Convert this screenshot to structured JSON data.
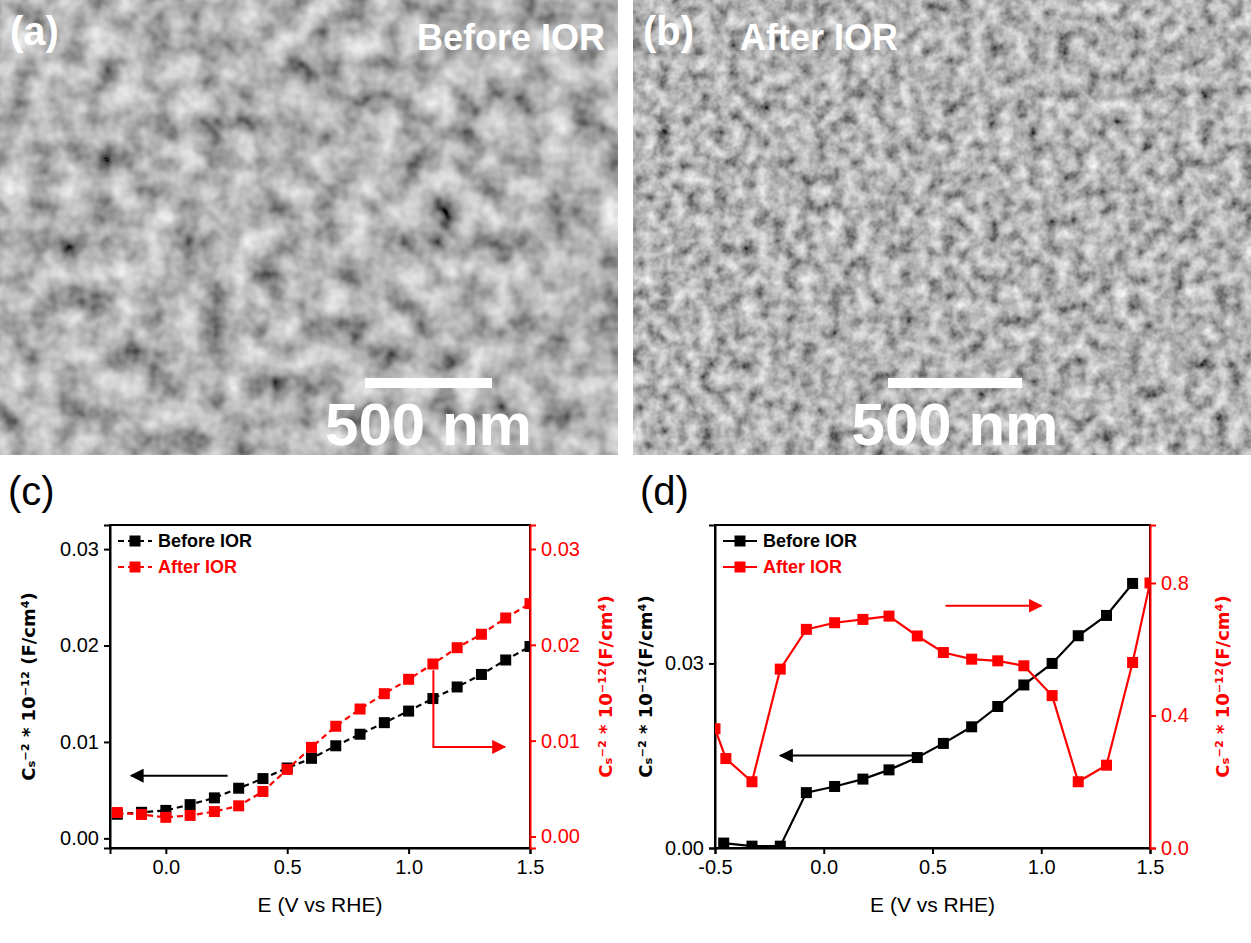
{
  "images": [
    {
      "panel": "(a)",
      "title": "Before IOR",
      "scale_bar": "500 nm"
    },
    {
      "panel": "(b)",
      "title": "After IOR",
      "scale_bar": "500 nm"
    }
  ],
  "chart_data": [
    {
      "type": "line",
      "panel": "(c)",
      "xlabel": "E (V vs RHE)",
      "ylabel": "Cₛ⁻² * 10⁻¹² (F/cm⁴)",
      "y2label": "Cₛ⁻² * 10⁻¹²(F/cm⁴)",
      "x": [
        -0.2,
        -0.1,
        0.0,
        0.1,
        0.2,
        0.3,
        0.4,
        0.5,
        0.6,
        0.7,
        0.8,
        0.9,
        1.0,
        1.1,
        1.2,
        1.3,
        1.4,
        1.5
      ],
      "xlim": [
        -0.23,
        1.5
      ],
      "xticks": [
        {
          "value": 0,
          "label": "0.0"
        },
        {
          "value": 0.5,
          "label": "0.5"
        },
        {
          "value": 1,
          "label": "1.0"
        },
        {
          "value": 1.5,
          "label": "1.5"
        }
      ],
      "ylim": [
        -0.001,
        0.0325
      ],
      "yticks": [
        {
          "value": 0,
          "label": "0.00"
        },
        {
          "value": 0.01,
          "label": "0.01"
        },
        {
          "value": 0.02,
          "label": "0.02"
        },
        {
          "value": 0.03,
          "label": "0.03"
        }
      ],
      "y2lim": [
        -0.0012,
        0.0325
      ],
      "y2ticks": [
        {
          "value": 0,
          "label": "0.00"
        },
        {
          "value": 0.01,
          "label": "0.01"
        },
        {
          "value": 0.02,
          "label": "0.02"
        },
        {
          "value": 0.03,
          "label": "0.03"
        }
      ],
      "legend": "upper left",
      "series": [
        {
          "name": "Before IOR",
          "color": "#000000",
          "marker": "square",
          "line_style": "dashed",
          "values": [
            0.0025,
            0.0027,
            0.0029,
            0.0035,
            0.0042,
            0.0052,
            0.0062,
            0.0073,
            0.0083,
            0.0096,
            0.0108,
            0.012,
            0.0132,
            0.0145,
            0.0157,
            0.017,
            0.0185,
            0.0199
          ]
        },
        {
          "name": "After IOR",
          "color": "#ff0000",
          "marker": "square",
          "line_style": "dashed",
          "axis": "y2",
          "values": [
            0.0025,
            0.0023,
            0.002,
            0.0022,
            0.0026,
            0.0032,
            0.0047,
            0.007,
            0.0093,
            0.0115,
            0.0133,
            0.0149,
            0.0164,
            0.018,
            0.0197,
            0.0211,
            0.0228,
            0.0243
          ]
        }
      ]
    },
    {
      "type": "line",
      "panel": "(d)",
      "xlabel": "E (V vs RHE)",
      "ylabel": "Cₛ⁻² * 10⁻¹²(F/cm⁴)",
      "y2label": "Cₛ⁻² * 10⁻¹²(F/cm⁴)",
      "xlim": [
        -0.5,
        1.5
      ],
      "xticks": [
        {
          "value": -0.5,
          "label": "-0.5"
        },
        {
          "value": 0,
          "label": "0.0"
        },
        {
          "value": 0.5,
          "label": "0.5"
        },
        {
          "value": 1,
          "label": "1.0"
        },
        {
          "value": 1.5,
          "label": "1.5"
        }
      ],
      "ylim": [
        0,
        0.0525
      ],
      "yticks": [
        {
          "value": 0,
          "label": "0.00"
        },
        {
          "value": 0.03,
          "label": "0.03"
        }
      ],
      "y2lim": [
        0,
        0.975
      ],
      "y2ticks": [
        {
          "value": 0,
          "label": "0.0"
        },
        {
          "value": 0.4,
          "label": "0.4"
        },
        {
          "value": 0.8,
          "label": "0.8"
        }
      ],
      "legend": "upper left",
      "series": [
        {
          "name": "Before IOR",
          "color": "#000000",
          "marker": "square",
          "line_style": "solid",
          "x": [
            -0.46,
            -0.33,
            -0.2,
            -0.08,
            0.05,
            0.18,
            0.3,
            0.43,
            0.55,
            0.68,
            0.8,
            0.92,
            1.05,
            1.17,
            1.3,
            1.42
          ],
          "values": [
            0.0008,
            0.0003,
            0.0003,
            0.009,
            0.01,
            0.0112,
            0.0127,
            0.0147,
            0.017,
            0.0197,
            0.023,
            0.0265,
            0.03,
            0.0345,
            0.0378,
            0.043
          ]
        },
        {
          "name": "After IOR",
          "color": "#ff0000",
          "marker": "square",
          "line_style": "solid",
          "axis": "y2",
          "x": [
            -0.5,
            -0.45,
            -0.33,
            -0.2,
            -0.08,
            0.05,
            0.18,
            0.3,
            0.43,
            0.55,
            0.68,
            0.8,
            0.92,
            1.05,
            1.17,
            1.3,
            1.42,
            1.5
          ],
          "values": [
            0.36,
            0.27,
            0.2,
            0.54,
            0.66,
            0.68,
            0.69,
            0.7,
            0.64,
            0.59,
            0.57,
            0.565,
            0.55,
            0.46,
            0.2,
            0.25,
            0.56,
            0.8
          ]
        }
      ]
    }
  ]
}
